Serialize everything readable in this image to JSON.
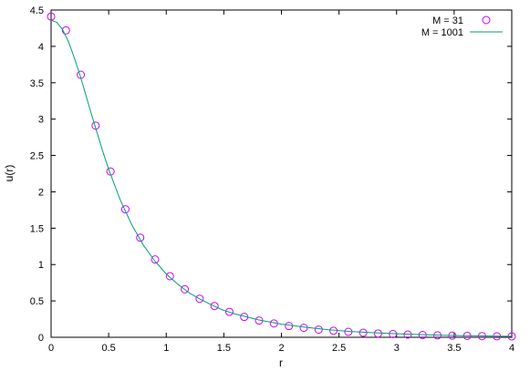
{
  "chart_data": {
    "type": "line",
    "title": "",
    "xlabel": "r",
    "ylabel": "u(r)",
    "xlim": [
      0,
      4
    ],
    "ylim": [
      0,
      4.5
    ],
    "grid": false,
    "legend_position": "top-right",
    "x_ticks": [
      0,
      0.5,
      1,
      1.5,
      2,
      2.5,
      3,
      3.5,
      4
    ],
    "x_tick_labels": [
      "0",
      "0.5",
      "1",
      "1.5",
      "2",
      "2.5",
      "3",
      "3.5",
      "4"
    ],
    "y_ticks": [
      0,
      0.5,
      1,
      1.5,
      2,
      2.5,
      3,
      3.5,
      4,
      4.5
    ],
    "y_tick_labels": [
      "0",
      "0.5",
      "1",
      "1.5",
      "2",
      "2.5",
      "3",
      "3.5",
      "4",
      "4.5"
    ],
    "series": [
      {
        "name": "M = 31",
        "kind": "scatter",
        "marker": "circle",
        "color": "#cc00ff",
        "x": [
          0.0,
          0.129,
          0.258,
          0.387,
          0.516,
          0.645,
          0.774,
          0.903,
          1.032,
          1.161,
          1.29,
          1.419,
          1.548,
          1.677,
          1.806,
          1.935,
          2.065,
          2.194,
          2.323,
          2.452,
          2.581,
          2.71,
          2.839,
          2.968,
          3.097,
          3.226,
          3.355,
          3.484,
          3.613,
          3.742,
          3.871,
          4.0
        ],
        "y": [
          4.41,
          4.22,
          3.61,
          2.91,
          2.28,
          1.76,
          1.37,
          1.07,
          0.84,
          0.66,
          0.53,
          0.43,
          0.35,
          0.28,
          0.23,
          0.19,
          0.155,
          0.13,
          0.105,
          0.09,
          0.075,
          0.062,
          0.052,
          0.044,
          0.037,
          0.031,
          0.026,
          0.022,
          0.019,
          0.016,
          0.014,
          0.012
        ]
      },
      {
        "name": "M = 1001",
        "kind": "line",
        "color": "#009e73",
        "x": [
          0.0,
          0.05,
          0.1,
          0.15,
          0.2,
          0.25,
          0.3,
          0.35,
          0.4,
          0.45,
          0.5,
          0.6,
          0.7,
          0.8,
          0.9,
          1.0,
          1.1,
          1.2,
          1.3,
          1.4,
          1.5,
          1.6,
          1.8,
          2.0,
          2.2,
          2.4,
          2.6,
          2.8,
          3.0,
          3.2,
          3.4,
          3.6,
          3.8,
          4.0
        ],
        "y": [
          4.36,
          4.33,
          4.23,
          4.07,
          3.85,
          3.61,
          3.34,
          3.07,
          2.81,
          2.55,
          2.31,
          1.89,
          1.55,
          1.27,
          1.05,
          0.87,
          0.73,
          0.61,
          0.52,
          0.44,
          0.37,
          0.32,
          0.24,
          0.18,
          0.14,
          0.105,
          0.08,
          0.062,
          0.048,
          0.037,
          0.029,
          0.022,
          0.017,
          0.013
        ]
      }
    ]
  }
}
